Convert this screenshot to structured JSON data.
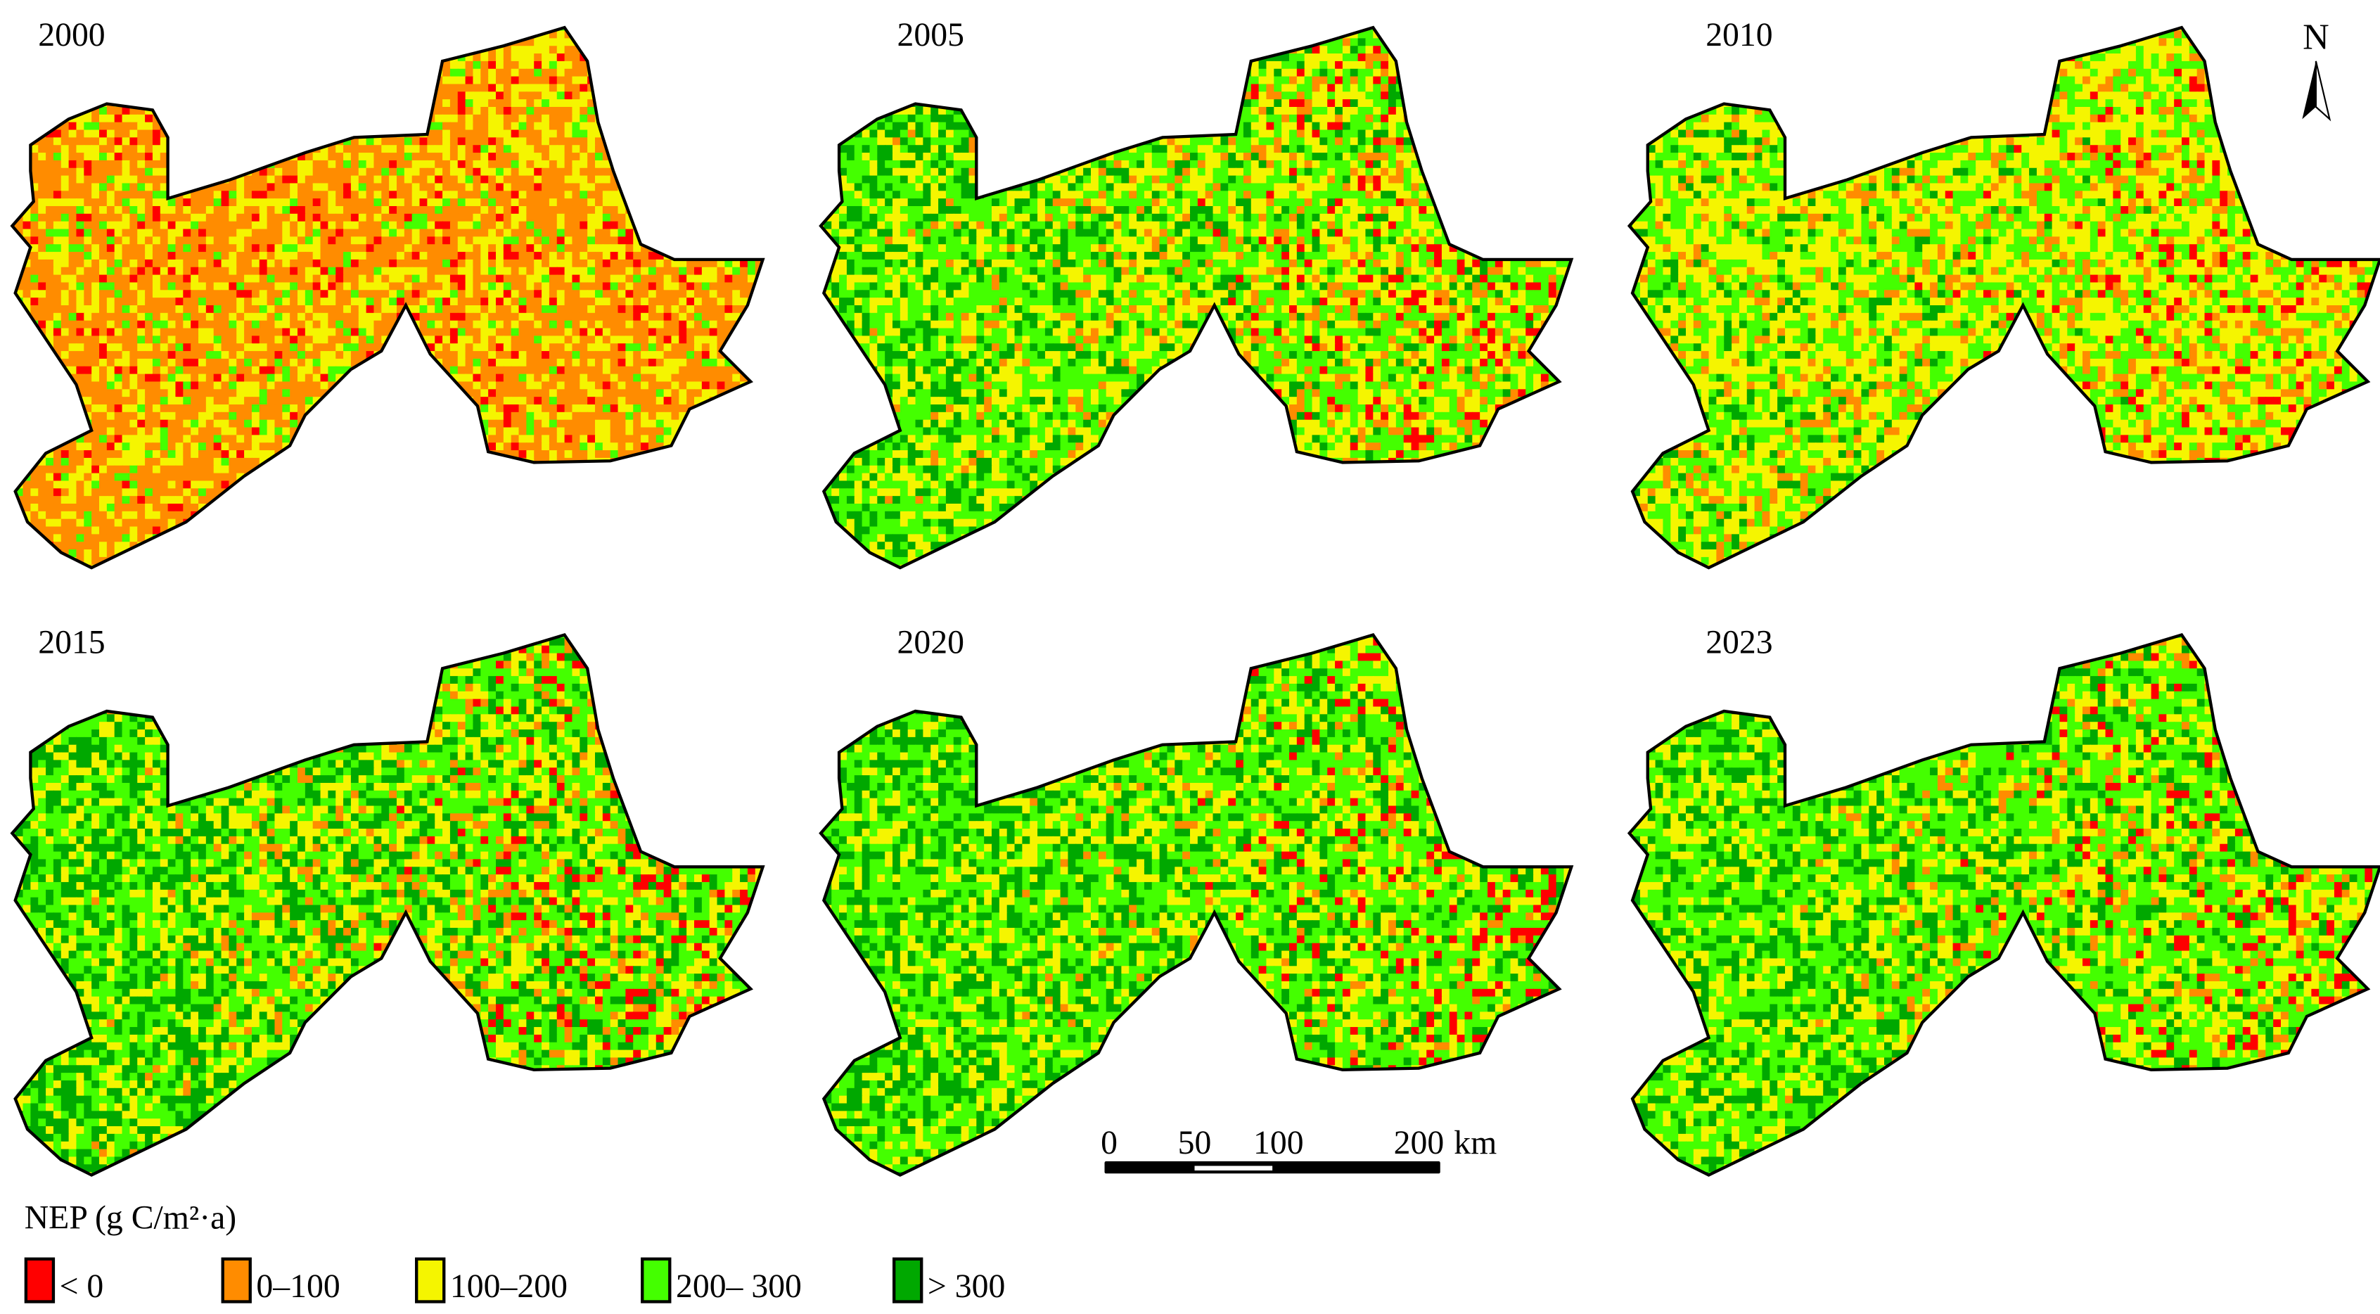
{
  "panels": [
    {
      "year": "2000",
      "class_fractions": [
        0.08,
        0.55,
        0.3,
        0.07,
        0.0
      ],
      "east_green_bias": 0.0
    },
    {
      "year": "2005",
      "class_fractions": [
        0.02,
        0.12,
        0.3,
        0.4,
        0.16
      ],
      "east_green_bias": 0.6
    },
    {
      "year": "2010",
      "class_fractions": [
        0.03,
        0.15,
        0.42,
        0.35,
        0.05
      ],
      "east_green_bias": 0.4
    },
    {
      "year": "2015",
      "class_fractions": [
        0.02,
        0.1,
        0.25,
        0.38,
        0.25
      ],
      "east_green_bias": 0.6
    },
    {
      "year": "2020",
      "class_fractions": [
        0.02,
        0.05,
        0.25,
        0.43,
        0.25
      ],
      "east_green_bias": 0.6
    },
    {
      "year": "2023",
      "class_fractions": [
        0.02,
        0.06,
        0.27,
        0.45,
        0.2
      ],
      "east_green_bias": 0.5
    }
  ],
  "north_arrow": {
    "label": "N"
  },
  "scale_bar": {
    "ticks": [
      "0",
      "50",
      "100",
      "200"
    ],
    "unit": "km"
  },
  "legend": {
    "title": "NEP (g C/m²·a)",
    "items": [
      {
        "label": "< 0",
        "color": "#ff0000"
      },
      {
        "label": "0–100",
        "color": "#ff8c00"
      },
      {
        "label": "100–200",
        "color": "#f5f500"
      },
      {
        "label": "200– 300",
        "color": "#44ff00"
      },
      {
        "label": "> 300",
        "color": "#00a800"
      }
    ]
  }
}
